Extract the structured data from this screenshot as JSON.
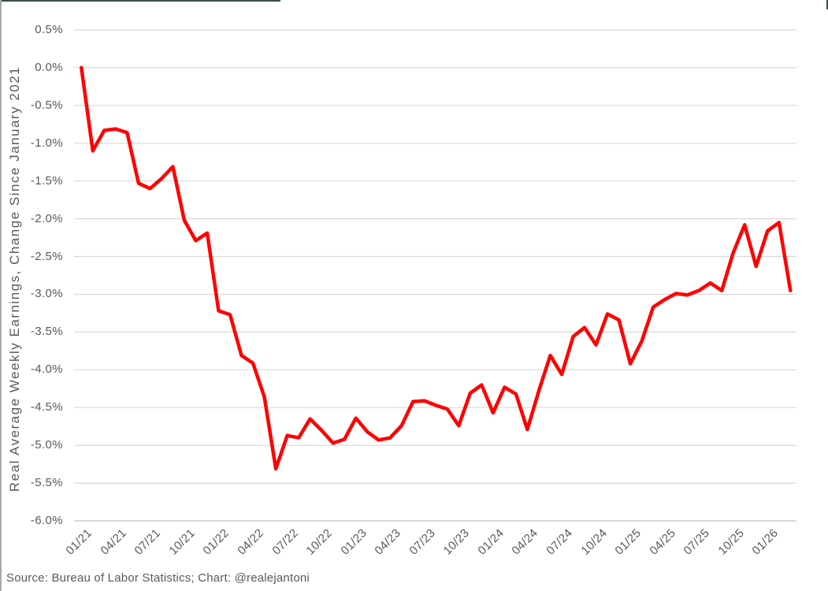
{
  "chart_data": {
    "type": "line",
    "title": "",
    "xlabel": "",
    "ylabel": "Real Average Weekly Earnings, Change Since January 2021",
    "legend_position": "none",
    "grid": true,
    "ylim": [
      -6.0,
      0.5
    ],
    "y_ticks": [
      0.5,
      0.0,
      -0.5,
      -1.0,
      -1.5,
      -2.0,
      -2.5,
      -3.0,
      -3.5,
      -4.0,
      -4.5,
      -5.0,
      -5.5,
      -6.0
    ],
    "y_tick_suffix": "%",
    "x": [
      "01/21",
      "02/21",
      "03/21",
      "04/21",
      "05/21",
      "06/21",
      "07/21",
      "08/21",
      "09/21",
      "10/21",
      "11/21",
      "12/21",
      "01/22",
      "02/22",
      "03/22",
      "04/22",
      "05/22",
      "06/22",
      "07/22",
      "08/22",
      "09/22",
      "10/22",
      "11/22",
      "12/22",
      "01/23",
      "02/23",
      "03/23",
      "04/23",
      "05/23",
      "06/23",
      "07/23",
      "08/23",
      "09/23",
      "10/23",
      "11/23",
      "12/23",
      "01/24",
      "02/24",
      "03/24",
      "04/24",
      "05/24",
      "06/24",
      "07/24",
      "08/24",
      "09/24",
      "10/24",
      "11/24",
      "12/24",
      "01/25",
      "02/25",
      "03/25",
      "04/25",
      "05/25",
      "06/25",
      "07/25",
      "08/25",
      "09/25",
      "10/25",
      "11/25",
      "12/25",
      "01/26",
      "02/26",
      "03/26"
    ],
    "x_tick_labels": [
      "01/21",
      "04/21",
      "07/21",
      "10/21",
      "01/22",
      "04/22",
      "07/22",
      "10/22",
      "01/23",
      "04/23",
      "07/23",
      "10/23",
      "01/24",
      "04/24",
      "07/24",
      "10/24",
      "01/25",
      "04/25",
      "07/25",
      "10/25",
      "01/26"
    ],
    "x_tick_every": 3,
    "series": [
      {
        "name": "Real Average Weekly Earnings, Change Since January 2021 (%)",
        "values": [
          0.0,
          -1.1,
          -0.83,
          -0.81,
          -0.86,
          -1.53,
          -1.6,
          -1.47,
          -1.31,
          -2.02,
          -2.29,
          -2.19,
          -3.22,
          -3.27,
          -3.81,
          -3.91,
          -4.36,
          -5.31,
          -4.87,
          -4.9,
          -4.65,
          -4.8,
          -4.97,
          -4.92,
          -4.64,
          -4.82,
          -4.93,
          -4.9,
          -4.74,
          -4.42,
          -4.41,
          -4.47,
          -4.52,
          -4.74,
          -4.31,
          -4.2,
          -4.57,
          -4.23,
          -4.32,
          -4.79,
          -4.28,
          -3.81,
          -4.06,
          -3.56,
          -3.44,
          -3.67,
          -3.26,
          -3.34,
          -3.92,
          -3.62,
          -3.17,
          -3.07,
          -2.99,
          -3.01,
          -2.95,
          -2.85,
          -2.95,
          -2.45,
          -2.08,
          -2.63,
          -2.16,
          -2.05,
          -2.95
        ]
      }
    ],
    "line_color": "#FF0000",
    "line_width": 4.5,
    "gridline_color": "#D9D9D9",
    "axis_line_color": "#BFBFBF",
    "text_color": "#595959",
    "background_color": "#FFFFFF"
  },
  "footer": {
    "source": "Source: Bureau of Labor Statistics; Chart: @realejantoni"
  }
}
